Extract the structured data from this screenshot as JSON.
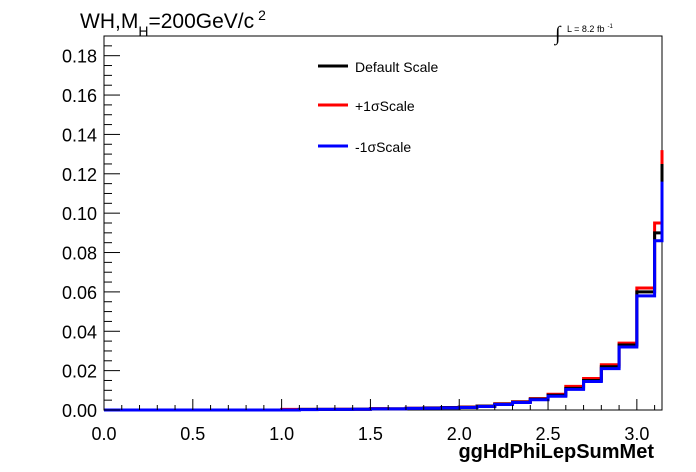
{
  "chart_data": {
    "type": "histogram-step",
    "title_prefix": "WH,M",
    "title_sub": "H",
    "title_suffix": "=200GeV/c",
    "title_sup": "2",
    "lumi_integral": "∫",
    "lumi_text": "L = 8.2 fb",
    "lumi_sup": "-1",
    "xlabel": "ggHdPhiLepSumMet",
    "ylabel": "",
    "xlim": [
      0,
      3.1416
    ],
    "ylim": [
      0,
      0.19
    ],
    "xticks": [
      "0.0",
      "0.5",
      "1.0",
      "1.5",
      "2.0",
      "2.5",
      "3.0"
    ],
    "xtick_values": [
      0,
      0.5,
      1.0,
      1.5,
      2.0,
      2.5,
      3.0
    ],
    "yticks": [
      "0.00",
      "0.02",
      "0.04",
      "0.06",
      "0.08",
      "0.10",
      "0.12",
      "0.14",
      "0.16",
      "0.18"
    ],
    "ytick_values": [
      0,
      0.02,
      0.04,
      0.06,
      0.08,
      0.1,
      0.12,
      0.14,
      0.16,
      0.18
    ],
    "bin_edges": [
      0,
      0.1,
      0.2,
      0.3,
      0.4,
      0.5,
      0.6,
      0.7,
      0.8,
      0.9,
      1.0,
      1.1,
      1.2,
      1.3,
      1.4,
      1.5,
      1.6,
      1.7,
      1.8,
      1.9,
      2.0,
      2.1,
      2.2,
      2.3,
      2.4,
      2.5,
      2.6,
      2.7,
      2.8,
      2.9,
      3.0,
      3.1,
      3.1416
    ],
    "series": [
      {
        "name": "Default Scale",
        "color": "#000000",
        "values": [
          0,
          0,
          0,
          0,
          0,
          0,
          0,
          0,
          0,
          0,
          0,
          0.0003,
          0.0003,
          0.0003,
          0.0004,
          0.0006,
          0.0006,
          0.0008,
          0.001,
          0.0012,
          0.0014,
          0.002,
          0.003,
          0.004,
          0.0055,
          0.0075,
          0.011,
          0.015,
          0.022,
          0.033,
          0.06,
          0.09,
          0.125
        ]
      },
      {
        "name": "+1σScale",
        "color": "#ff0000",
        "values": [
          0,
          0,
          0,
          0,
          0,
          0,
          0,
          0,
          0,
          0,
          0.0003,
          0.0003,
          0.0003,
          0.0004,
          0.0004,
          0.0007,
          0.0006,
          0.0009,
          0.0011,
          0.0013,
          0.0015,
          0.002,
          0.0032,
          0.0042,
          0.0058,
          0.008,
          0.012,
          0.016,
          0.023,
          0.034,
          0.062,
          0.095,
          0.132
        ]
      },
      {
        "name": "-1σScale",
        "color": "#0000ff",
        "values": [
          0,
          0,
          0,
          0,
          0,
          0,
          0,
          0,
          0,
          0,
          0,
          0.0002,
          0.0003,
          0.0003,
          0.0004,
          0.0006,
          0.0006,
          0.0008,
          0.0009,
          0.0011,
          0.0013,
          0.0018,
          0.0028,
          0.0038,
          0.0052,
          0.007,
          0.0105,
          0.0145,
          0.021,
          0.032,
          0.058,
          0.086,
          0.116
        ]
      }
    ],
    "legend": {
      "placement": "top-center"
    },
    "grid": false
  }
}
